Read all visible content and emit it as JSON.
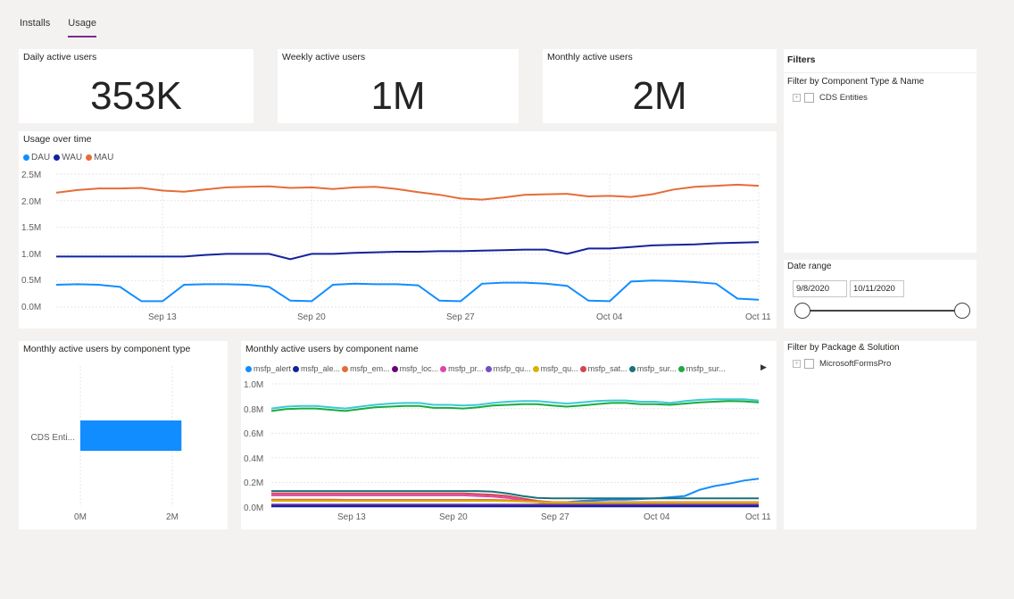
{
  "tabs": [
    {
      "label": "Installs"
    },
    {
      "label": "Usage"
    }
  ],
  "kpis": [
    {
      "title": "Daily active users",
      "value": "353K"
    },
    {
      "title": "Weekly active users",
      "value": "1M"
    },
    {
      "title": "Monthly active users",
      "value": "2M"
    }
  ],
  "usage_chart": {
    "title": "Usage over time",
    "legend": [
      {
        "name": "DAU",
        "color": "#118dff"
      },
      {
        "name": "WAU",
        "color": "#12239e"
      },
      {
        "name": "MAU",
        "color": "#e66c37"
      }
    ],
    "y_ticks": [
      "2.5M",
      "2.0M",
      "1.5M",
      "1.0M",
      "0.5M",
      "0.0M"
    ],
    "x_ticks": [
      "Sep 13",
      "Sep 20",
      "Sep 27",
      "Oct 04",
      "Oct 11"
    ]
  },
  "component_type_chart": {
    "title": "Monthly active users by component type",
    "category": "CDS Enti...",
    "x_ticks": [
      "0M",
      "2M"
    ]
  },
  "component_name_chart": {
    "title": "Monthly active users by component name",
    "legend": [
      {
        "name": "msfp_alert",
        "color": "#118dff"
      },
      {
        "name": "msfp_ale...",
        "color": "#12239e"
      },
      {
        "name": "msfp_em...",
        "color": "#e66c37"
      },
      {
        "name": "msfp_loc...",
        "color": "#6b007b"
      },
      {
        "name": "msfp_pr...",
        "color": "#e044a7"
      },
      {
        "name": "msfp_qu...",
        "color": "#744ec2"
      },
      {
        "name": "msfp_qu...",
        "color": "#d9b300"
      },
      {
        "name": "msfp_sat...",
        "color": "#d64550"
      },
      {
        "name": "msfp_sur...",
        "color": "#197278"
      },
      {
        "name": "msfp_sur...",
        "color": "#1aab40"
      }
    ],
    "y_ticks": [
      "1.0M",
      "0.8M",
      "0.6M",
      "0.4M",
      "0.2M",
      "0.0M"
    ],
    "x_ticks": [
      "Sep 13",
      "Sep 20",
      "Sep 27",
      "Oct 04",
      "Oct 11"
    ]
  },
  "filters": {
    "title": "Filters",
    "component_filter_label": "Filter by Component Type & Name",
    "component_item": "CDS Entities",
    "date_range_label": "Date range",
    "date_start": "9/8/2020",
    "date_end": "10/11/2020",
    "package_filter_label": "Filter by Package & Solution",
    "package_item": "MicrosoftFormsPro"
  },
  "chart_data": [
    {
      "type": "line",
      "title": "Usage over time",
      "x": [
        "Sep 8",
        "Sep 9",
        "Sep 10",
        "Sep 11",
        "Sep 12",
        "Sep 13",
        "Sep 14",
        "Sep 15",
        "Sep 16",
        "Sep 17",
        "Sep 18",
        "Sep 19",
        "Sep 20",
        "Sep 21",
        "Sep 22",
        "Sep 23",
        "Sep 24",
        "Sep 25",
        "Sep 26",
        "Sep 27",
        "Sep 28",
        "Sep 29",
        "Sep 30",
        "Oct 1",
        "Oct 2",
        "Oct 3",
        "Oct 4",
        "Oct 5",
        "Oct 6",
        "Oct 7",
        "Oct 8",
        "Oct 9",
        "Oct 10",
        "Oct 11"
      ],
      "x_ticks": [
        "Sep 13",
        "Sep 20",
        "Sep 27",
        "Oct 04",
        "Oct 11"
      ],
      "ylim": [
        0,
        2500000
      ],
      "series": [
        {
          "name": "DAU",
          "color": "#118dff",
          "values": [
            420000,
            430000,
            420000,
            380000,
            110000,
            110000,
            420000,
            430000,
            430000,
            420000,
            380000,
            120000,
            110000,
            420000,
            440000,
            430000,
            430000,
            410000,
            120000,
            110000,
            440000,
            460000,
            460000,
            440000,
            400000,
            120000,
            110000,
            480000,
            500000,
            490000,
            470000,
            440000,
            160000,
            140000
          ]
        },
        {
          "name": "WAU",
          "color": "#12239e",
          "values": [
            950000,
            950000,
            950000,
            950000,
            950000,
            950000,
            950000,
            980000,
            1000000,
            1000000,
            1000000,
            900000,
            1000000,
            1000000,
            1020000,
            1030000,
            1040000,
            1040000,
            1050000,
            1050000,
            1060000,
            1070000,
            1080000,
            1080000,
            1000000,
            1100000,
            1100000,
            1130000,
            1160000,
            1170000,
            1180000,
            1200000,
            1210000,
            1220000
          ]
        },
        {
          "name": "MAU",
          "color": "#e66c37",
          "values": [
            2150000,
            2200000,
            2230000,
            2230000,
            2240000,
            2190000,
            2170000,
            2210000,
            2250000,
            2260000,
            2270000,
            2240000,
            2250000,
            2220000,
            2250000,
            2260000,
            2220000,
            2160000,
            2110000,
            2040000,
            2020000,
            2060000,
            2110000,
            2120000,
            2130000,
            2080000,
            2090000,
            2070000,
            2120000,
            2210000,
            2260000,
            2280000,
            2300000,
            2280000
          ]
        }
      ]
    },
    {
      "type": "bar",
      "title": "Monthly active users by component type",
      "categories": [
        "CDS Enti..."
      ],
      "values": [
        2200000
      ],
      "xlim": [
        0,
        2500000
      ]
    },
    {
      "type": "line",
      "title": "Monthly active users by component name",
      "x": [
        "Sep 8",
        "Sep 9",
        "Sep 10",
        "Sep 11",
        "Sep 12",
        "Sep 13",
        "Sep 14",
        "Sep 15",
        "Sep 16",
        "Sep 17",
        "Sep 18",
        "Sep 19",
        "Sep 20",
        "Sep 21",
        "Sep 22",
        "Sep 23",
        "Sep 24",
        "Sep 25",
        "Sep 26",
        "Sep 27",
        "Sep 28",
        "Sep 29",
        "Sep 30",
        "Oct 1",
        "Oct 2",
        "Oct 3",
        "Oct 4",
        "Oct 5",
        "Oct 6",
        "Oct 7",
        "Oct 8",
        "Oct 9",
        "Oct 10",
        "Oct 11"
      ],
      "x_ticks": [
        "Sep 13",
        "Sep 20",
        "Sep 27",
        "Oct 04",
        "Oct 11"
      ],
      "ylim": [
        0,
        1000000
      ],
      "series": [
        {
          "name": "msfp_sur... (teal)",
          "color": "#3cc9d6",
          "values": [
            800000,
            815000,
            820000,
            820000,
            810000,
            800000,
            815000,
            830000,
            840000,
            845000,
            845000,
            830000,
            830000,
            825000,
            830000,
            845000,
            855000,
            860000,
            860000,
            850000,
            840000,
            850000,
            860000,
            865000,
            865000,
            855000,
            855000,
            845000,
            860000,
            870000,
            875000,
            875000,
            875000,
            865000
          ]
        },
        {
          "name": "msfp_sur...",
          "color": "#1aab40",
          "values": [
            780000,
            795000,
            800000,
            800000,
            790000,
            780000,
            795000,
            810000,
            815000,
            820000,
            820000,
            805000,
            805000,
            800000,
            810000,
            825000,
            830000,
            835000,
            835000,
            825000,
            815000,
            825000,
            835000,
            845000,
            845000,
            835000,
            835000,
            830000,
            840000,
            850000,
            855000,
            860000,
            858000,
            850000
          ]
        },
        {
          "name": "msfp_alert",
          "color": "#118dff",
          "values": [
            20000,
            20000,
            20000,
            20000,
            20000,
            20000,
            20000,
            20000,
            20000,
            20000,
            20000,
            20000,
            20000,
            20000,
            20000,
            20000,
            20000,
            20000,
            20000,
            30000,
            40000,
            50000,
            55000,
            60000,
            60000,
            65000,
            70000,
            80000,
            90000,
            140000,
            170000,
            190000,
            215000,
            230000
          ]
        },
        {
          "name": "msfp_sur... (dark teal)",
          "color": "#197278",
          "values": [
            130000,
            130000,
            130000,
            130000,
            130000,
            130000,
            130000,
            130000,
            130000,
            130000,
            130000,
            130000,
            130000,
            130000,
            130000,
            125000,
            110000,
            90000,
            75000,
            70000,
            70000,
            70000,
            70000,
            70000,
            70000,
            70000,
            70000,
            70000,
            70000,
            70000,
            70000,
            70000,
            70000,
            70000
          ]
        },
        {
          "name": "msfp_sat...",
          "color": "#d64550",
          "values": [
            110000,
            110000,
            110000,
            110000,
            110000,
            110000,
            110000,
            110000,
            110000,
            110000,
            110000,
            110000,
            110000,
            110000,
            105000,
            100000,
            90000,
            70000,
            50000,
            40000,
            40000,
            40000,
            40000,
            40000,
            40000,
            40000,
            40000,
            40000,
            40000,
            40000,
            40000,
            40000,
            40000,
            40000
          ]
        },
        {
          "name": "msfp_pr...",
          "color": "#e044a7",
          "values": [
            95000,
            95000,
            95000,
            95000,
            95000,
            95000,
            95000,
            95000,
            95000,
            95000,
            95000,
            95000,
            95000,
            95000,
            90000,
            85000,
            75000,
            55000,
            40000,
            30000,
            30000,
            30000,
            30000,
            30000,
            30000,
            30000,
            30000,
            30000,
            30000,
            30000,
            30000,
            30000,
            30000,
            30000
          ]
        },
        {
          "name": "msfp_em...",
          "color": "#e66c37",
          "values": [
            60000,
            60000,
            60000,
            60000,
            60000,
            58000,
            58000,
            58000,
            58000,
            58000,
            58000,
            58000,
            58000,
            58000,
            58000,
            58000,
            55000,
            50000,
            45000,
            40000,
            40000,
            40000,
            40000,
            40000,
            40000,
            40000,
            40000,
            40000,
            40000,
            40000,
            40000,
            40000,
            40000,
            40000
          ]
        },
        {
          "name": "msfp_qu... (gold)",
          "color": "#d9b300",
          "values": [
            50000,
            50000,
            50000,
            50000,
            50000,
            50000,
            50000,
            50000,
            50000,
            50000,
            50000,
            50000,
            50000,
            50000,
            50000,
            50000,
            48000,
            45000,
            40000,
            35000,
            35000,
            35000,
            35000,
            35000,
            35000,
            35000,
            35000,
            35000,
            35000,
            35000,
            35000,
            35000,
            35000,
            35000
          ]
        },
        {
          "name": "msfp_qu...",
          "color": "#744ec2",
          "values": [
            20000,
            20000,
            20000,
            20000,
            20000,
            20000,
            20000,
            20000,
            20000,
            20000,
            20000,
            20000,
            20000,
            20000,
            20000,
            20000,
            20000,
            20000,
            20000,
            20000,
            20000,
            20000,
            20000,
            20000,
            20000,
            20000,
            20000,
            20000,
            20000,
            20000,
            20000,
            20000,
            20000,
            20000
          ]
        },
        {
          "name": "msfp_loc...",
          "color": "#6b007b",
          "values": [
            10000,
            10000,
            10000,
            10000,
            10000,
            10000,
            10000,
            10000,
            10000,
            10000,
            10000,
            10000,
            10000,
            10000,
            10000,
            10000,
            10000,
            10000,
            10000,
            10000,
            10000,
            10000,
            10000,
            10000,
            10000,
            10000,
            10000,
            10000,
            10000,
            10000,
            10000,
            10000,
            10000,
            10000
          ]
        },
        {
          "name": "msfp_ale...",
          "color": "#12239e",
          "values": [
            5000,
            5000,
            5000,
            5000,
            5000,
            5000,
            5000,
            5000,
            5000,
            5000,
            5000,
            5000,
            5000,
            5000,
            5000,
            5000,
            5000,
            5000,
            5000,
            5000,
            5000,
            5000,
            5000,
            5000,
            5000,
            5000,
            5000,
            5000,
            5000,
            5000,
            5000,
            5000,
            5000,
            5000
          ]
        }
      ]
    }
  ]
}
